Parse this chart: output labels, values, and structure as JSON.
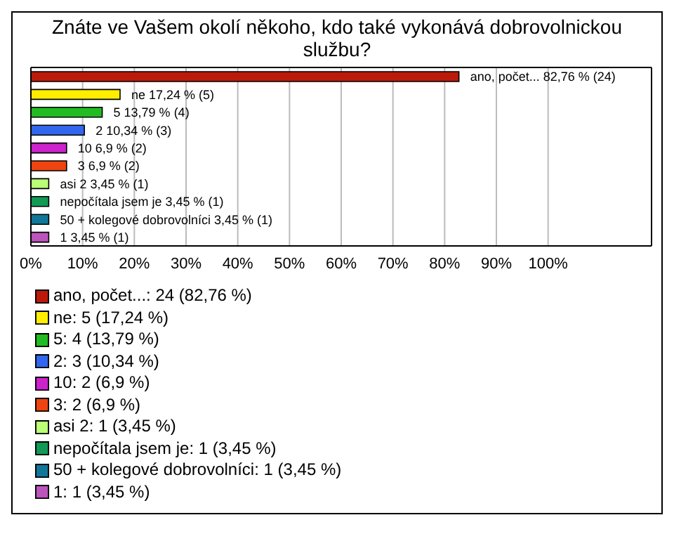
{
  "chart_data": {
    "type": "bar",
    "orientation": "horizontal",
    "stacked": true,
    "title": "Znáte ve Vašem okolí někoho, kdo také vykonává dobrovolnickou službu?",
    "categories": [
      null,
      null,
      null,
      null,
      null,
      null,
      null,
      null,
      null,
      null
    ],
    "series": [
      {
        "name": "ano, počet...: 24 (82,76 %)",
        "color": "#bb1a0a",
        "values": [
          82.76,
          null,
          null,
          null,
          null,
          null,
          null,
          null,
          null,
          null
        ],
        "value_labels": [
          "ano, počet... 82,76 % (24)",
          null,
          null,
          null,
          null,
          null,
          null,
          null,
          null,
          null
        ]
      },
      {
        "name": "ne: 5 (17,24 %)",
        "color": "#ffee00",
        "values": [
          null,
          17.24,
          null,
          null,
          null,
          null,
          null,
          null,
          null,
          null
        ],
        "value_labels": [
          null,
          "ne 17,24 % (5)",
          null,
          null,
          null,
          null,
          null,
          null,
          null,
          null
        ]
      },
      {
        "name": "5: 4 (13,79 %)",
        "color": "#22bb22",
        "values": [
          null,
          null,
          13.79,
          null,
          null,
          null,
          null,
          null,
          null,
          null
        ],
        "value_labels": [
          null,
          null,
          "5 13,79 % (4)",
          null,
          null,
          null,
          null,
          null,
          null,
          null
        ]
      },
      {
        "name": "2: 3 (10,34 %)",
        "color": "#3366ee",
        "values": [
          null,
          null,
          null,
          10.34,
          null,
          null,
          null,
          null,
          null,
          null
        ],
        "value_labels": [
          null,
          null,
          null,
          "2 10,34 % (3)",
          null,
          null,
          null,
          null,
          null,
          null
        ]
      },
      {
        "name": "10: 2 (6,9 %)",
        "color": "#cc22cc",
        "values": [
          null,
          null,
          null,
          null,
          6.9,
          null,
          null,
          null,
          null,
          null
        ],
        "value_labels": [
          null,
          null,
          null,
          null,
          "10 6,9 % (2)",
          null,
          null,
          null,
          null,
          null
        ]
      },
      {
        "name": "3: 2 (6,9 %)",
        "color": "#ee4411",
        "values": [
          null,
          null,
          null,
          null,
          null,
          6.9,
          null,
          null,
          null,
          null
        ],
        "value_labels": [
          null,
          null,
          null,
          null,
          null,
          "3 6,9 % (2)",
          null,
          null,
          null,
          null
        ]
      },
      {
        "name": "asi 2: 1 (3,45 %)",
        "color": "#bbff77",
        "values": [
          null,
          null,
          null,
          null,
          null,
          null,
          3.45,
          null,
          null,
          null
        ],
        "value_labels": [
          null,
          null,
          null,
          null,
          null,
          null,
          "asi 2 3,45 % (1)",
          null,
          null,
          null
        ]
      },
      {
        "name": "nepočítala jsem je: 1 (3,45 %)",
        "color": "#119955",
        "values": [
          null,
          null,
          null,
          null,
          null,
          null,
          null,
          3.45,
          null,
          null
        ],
        "value_labels": [
          null,
          null,
          null,
          null,
          null,
          null,
          null,
          "nepočítala jsem je 3,45 % (1)",
          null,
          null
        ]
      },
      {
        "name": "50 + kolegové dobrovolníci: 1 (3,45 %)",
        "color": "#117799",
        "values": [
          null,
          null,
          null,
          null,
          null,
          null,
          null,
          null,
          3.45,
          null
        ],
        "value_labels": [
          null,
          null,
          null,
          null,
          null,
          null,
          null,
          null,
          "50 + kolegové dobrovolníci 3,45 % (1)",
          null
        ]
      },
      {
        "name": "1: 1 (3,45 %)",
        "color": "#bb55bb",
        "values": [
          null,
          null,
          null,
          null,
          null,
          null,
          null,
          null,
          null,
          3.45
        ],
        "value_labels": [
          null,
          null,
          null,
          null,
          null,
          null,
          null,
          null,
          null,
          "1 3,45 % (1)"
        ]
      }
    ],
    "xlim": [
      0,
      120
    ],
    "xticks": [
      {
        "value": 0,
        "label": "0%"
      },
      {
        "value": 10,
        "label": "10%"
      },
      {
        "value": 20,
        "label": "20%"
      },
      {
        "value": 30,
        "label": "30%"
      },
      {
        "value": 40,
        "label": "40%"
      },
      {
        "value": 50,
        "label": "50%"
      },
      {
        "value": 60,
        "label": "60%"
      },
      {
        "value": 70,
        "label": "70%"
      },
      {
        "value": 80,
        "label": "80%"
      },
      {
        "value": 90,
        "label": "90%"
      },
      {
        "value": 100,
        "label": "100%"
      }
    ],
    "grid": "x",
    "legend": "bottom",
    "tick_labels": "x"
  }
}
